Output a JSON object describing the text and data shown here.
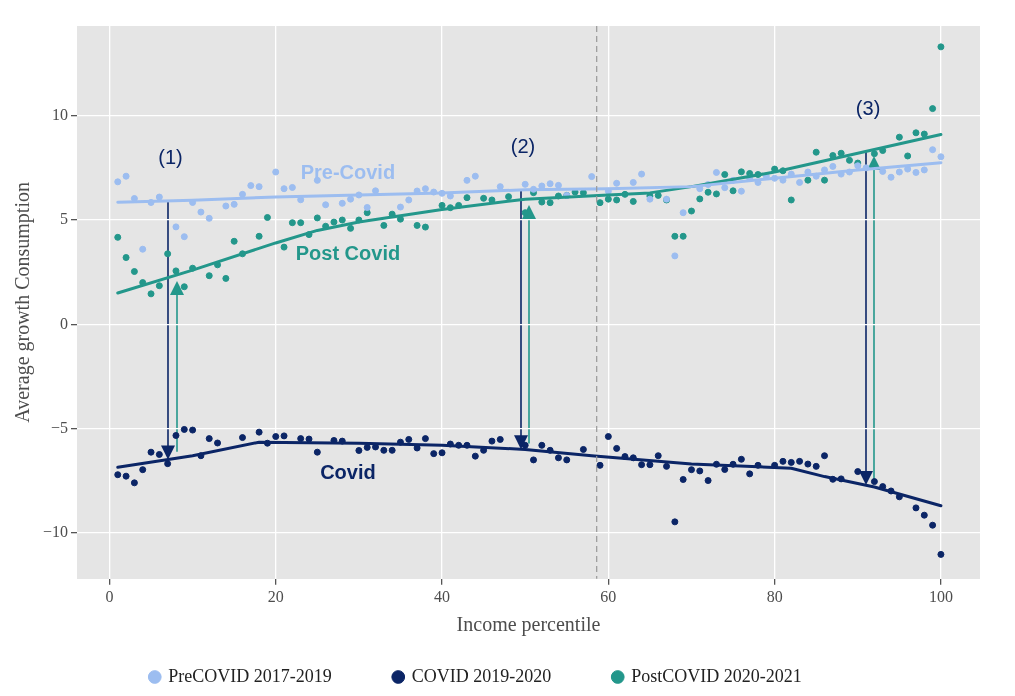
{
  "chart_data": {
    "type": "scatter",
    "xlabel": "Income percentile",
    "ylabel": "Average growth Consumption",
    "xlim": [
      -3.9,
      104.7
    ],
    "ylim": [
      -12.2,
      14.3
    ],
    "xticks": [
      0,
      20,
      40,
      60,
      80,
      100
    ],
    "yticks": [
      {
        "value": -10,
        "label": "−10"
      },
      {
        "value": -5,
        "label": "−5"
      },
      0,
      5,
      10
    ],
    "grid": true,
    "legend": "bottom",
    "ref_lines": [
      {
        "axis": "x",
        "value": 58.6,
        "color": "#999999",
        "line_style": "dashed"
      }
    ],
    "annotations": [
      {
        "text": "(1)",
        "x": 7.1,
        "y": 5.93
      },
      {
        "text": "(2)",
        "x": 49.5,
        "y": 6.44
      },
      {
        "text": "(3)",
        "x": 91,
        "y": 8.29
      }
    ],
    "series": [
      {
        "type": "scatter",
        "name": "PreCOVID 2017-2019",
        "color": "#9cbdf0",
        "marker": "circle",
        "x": [
          1,
          2,
          3,
          4,
          5,
          6,
          8,
          9,
          10,
          11,
          12,
          14,
          15,
          16,
          17,
          18,
          20,
          21,
          22,
          23,
          25,
          26,
          28,
          29,
          30,
          31,
          32,
          35,
          36,
          37,
          38,
          39,
          40,
          41,
          43,
          44,
          47,
          50,
          51,
          52,
          53,
          54,
          55,
          58,
          60,
          61,
          63,
          64,
          65,
          67,
          68,
          69,
          71,
          72,
          73,
          74,
          75,
          76,
          77,
          78,
          79,
          80,
          81,
          82,
          83,
          84,
          85,
          86,
          87,
          88,
          89,
          90,
          91,
          93,
          94,
          95,
          96,
          97,
          98,
          99,
          100
        ],
        "values": [
          6.83,
          7.1,
          6.03,
          3.6,
          5.84,
          6.1,
          4.67,
          4.2,
          5.84,
          5.38,
          5.08,
          5.67,
          5.75,
          6.23,
          6.65,
          6.6,
          7.3,
          6.5,
          6.56,
          5.97,
          6.9,
          5.73,
          5.8,
          6.0,
          6.2,
          5.6,
          6.4,
          5.62,
          5.96,
          6.39,
          6.5,
          6.34,
          6.28,
          6.15,
          6.9,
          7.1,
          6.6,
          6.71,
          6.47,
          6.63,
          6.74,
          6.66,
          6.18,
          7.08,
          6.38,
          6.76,
          6.8,
          7.2,
          6.0,
          6.0,
          3.28,
          5.35,
          6.5,
          6.7,
          7.28,
          6.55,
          6.9,
          6.38,
          7.0,
          6.8,
          7.1,
          7.0,
          6.91,
          7.2,
          6.8,
          7.3,
          7.1,
          7.4,
          7.57,
          7.2,
          7.3,
          7.6,
          7.5,
          7.33,
          7.05,
          7.3,
          7.44,
          7.28,
          7.4,
          8.37,
          8.03
        ]
      },
      {
        "type": "scatter",
        "name": "COVID 2019-2020",
        "color": "#0b2566",
        "marker": "circle",
        "x": [
          1,
          2,
          3,
          4,
          5,
          6,
          7,
          8,
          9,
          10,
          11,
          12,
          13,
          16,
          18,
          19,
          20,
          21,
          23,
          24,
          25,
          27,
          28,
          30,
          31,
          32,
          33,
          34,
          35,
          36,
          37,
          38,
          39,
          40,
          41,
          42,
          43,
          44,
          45,
          46,
          47,
          50,
          51,
          52,
          53,
          54,
          55,
          57,
          59,
          60,
          61,
          62,
          63,
          64,
          65,
          66,
          67,
          68,
          69,
          70,
          71,
          72,
          73,
          74,
          75,
          76,
          77,
          78,
          80,
          81,
          82,
          83,
          84,
          85,
          86,
          87,
          88,
          90,
          92,
          93,
          94,
          95,
          97,
          98,
          99,
          100
        ],
        "values": [
          -7.21,
          -7.28,
          -7.6,
          -6.97,
          -6.13,
          -6.24,
          -6.68,
          -5.33,
          -5.04,
          -5.07,
          -6.3,
          -5.48,
          -5.69,
          -5.43,
          -5.17,
          -5.7,
          -5.38,
          -5.35,
          -5.48,
          -5.5,
          -6.13,
          -5.57,
          -5.6,
          -6.05,
          -5.9,
          -5.88,
          -6.04,
          -6.04,
          -5.65,
          -5.52,
          -5.93,
          -5.48,
          -6.2,
          -6.16,
          -5.74,
          -5.8,
          -5.8,
          -6.32,
          -6.04,
          -5.6,
          -5.52,
          -5.8,
          -6.5,
          -5.8,
          -6.04,
          -6.4,
          -6.5,
          -6.0,
          -6.76,
          -5.38,
          -5.95,
          -6.34,
          -6.4,
          -6.73,
          -6.73,
          -6.3,
          -6.81,
          -9.47,
          -7.44,
          -6.97,
          -7.03,
          -7.49,
          -6.71,
          -6.96,
          -6.71,
          -6.47,
          -7.17,
          -6.76,
          -6.76,
          -6.57,
          -6.62,
          -6.57,
          -6.7,
          -6.81,
          -6.3,
          -7.43,
          -7.41,
          -7.06,
          -7.54,
          -7.78,
          -7.99,
          -8.27,
          -8.8,
          -9.15,
          -9.63,
          -11.03
        ]
      },
      {
        "type": "scatter",
        "name": "PostCOVID 2020-2021",
        "color": "#23978b",
        "marker": "circle",
        "x": [
          1,
          2,
          3,
          4,
          5,
          6,
          7,
          8,
          9,
          10,
          12,
          13,
          14,
          15,
          16,
          18,
          19,
          21,
          22,
          23,
          24,
          25,
          26,
          27,
          28,
          29,
          30,
          31,
          33,
          34,
          35,
          37,
          38,
          40,
          41,
          42,
          43,
          45,
          46,
          48,
          50,
          51,
          52,
          53,
          54,
          55,
          56,
          57,
          59,
          60,
          61,
          62,
          63,
          65,
          66,
          67,
          68,
          69,
          70,
          71,
          72,
          73,
          74,
          75,
          76,
          77,
          78,
          80,
          81,
          82,
          84,
          85,
          86,
          87,
          88,
          89,
          90,
          92,
          93,
          95,
          96,
          97,
          98,
          99,
          100
        ],
        "values": [
          4.17,
          3.2,
          2.53,
          2.0,
          1.46,
          1.85,
          3.38,
          2.56,
          1.8,
          2.69,
          2.33,
          2.85,
          2.2,
          3.98,
          3.38,
          4.22,
          5.12,
          3.7,
          4.87,
          4.87,
          4.3,
          5.1,
          4.7,
          4.9,
          5.0,
          4.6,
          5.0,
          5.35,
          4.74,
          5.28,
          5.04,
          4.74,
          4.66,
          5.7,
          5.59,
          5.7,
          6.07,
          6.04,
          5.96,
          6.12,
          5.35,
          6.31,
          5.86,
          5.83,
          6.15,
          6.18,
          6.34,
          6.31,
          5.83,
          6.0,
          5.96,
          6.23,
          5.89,
          6.15,
          6.18,
          5.96,
          4.22,
          4.22,
          5.43,
          6.01,
          6.33,
          6.25,
          7.18,
          6.4,
          7.31,
          7.23,
          7.18,
          7.44,
          7.36,
          5.96,
          6.91,
          8.25,
          6.91,
          8.09,
          8.2,
          7.86,
          7.73,
          8.18,
          8.33,
          8.97,
          8.07,
          9.18,
          9.12,
          10.34,
          13.3
        ]
      },
      {
        "type": "line",
        "name": "Pre-Covid",
        "color": "#9cbdf0",
        "marker": "none",
        "x": [
          1,
          10,
          20,
          30,
          40,
          50,
          60,
          70,
          80,
          90,
          100
        ],
        "values": [
          5.85,
          5.95,
          6.1,
          6.2,
          6.3,
          6.45,
          6.5,
          6.6,
          7.0,
          7.4,
          7.75
        ]
      },
      {
        "type": "line",
        "name": "Post Covid",
        "color": "#23978b",
        "marker": "none",
        "x": [
          1,
          10,
          20,
          25,
          30,
          40,
          50,
          60,
          65,
          70,
          80,
          90,
          100
        ],
        "values": [
          1.5,
          2.6,
          3.9,
          4.5,
          4.9,
          5.5,
          6.0,
          6.2,
          6.3,
          6.6,
          7.3,
          8.2,
          9.1
        ]
      },
      {
        "type": "line",
        "name": "Covid",
        "color": "#0b2566",
        "marker": "none",
        "x": [
          1,
          10,
          18,
          30,
          40,
          50,
          58,
          70,
          82,
          86,
          92,
          100
        ],
        "values": [
          -6.85,
          -6.3,
          -5.65,
          -5.7,
          -5.8,
          -6.0,
          -6.3,
          -6.7,
          -6.9,
          -7.3,
          -7.8,
          -8.7
        ]
      }
    ]
  }
}
